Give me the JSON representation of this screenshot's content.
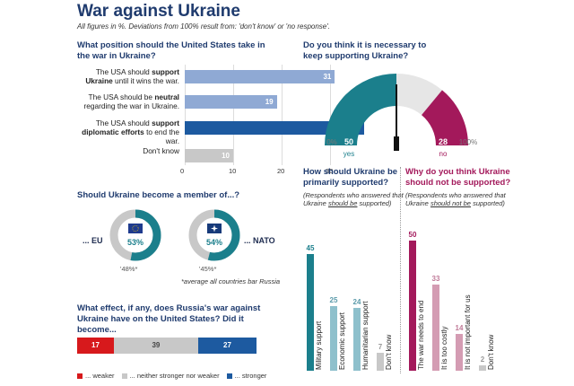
{
  "title": "War against Ukraine",
  "subtitle": "All figures in %. Deviations from 100% result from: 'don't know' or 'no response'.",
  "colors": {
    "lightblue": "#8fa9d4",
    "darkblue": "#1d5aa0",
    "gray": "#c8c8c8",
    "teal": "#1b7f8c",
    "maroon": "#a3195b",
    "pink": "#d49cb3",
    "lightteal": "#8ec0cc",
    "red": "#d7191c"
  },
  "q1": {
    "question": "What position should the United States take in the war in Ukraine?",
    "rows": [
      {
        "text_pre": "The USA should ",
        "text_bold": "support Ukraine",
        "text_post": " until it wins the war.",
        "value": 31
      },
      {
        "text_pre": "The USA should be ",
        "text_bold": "neutral",
        "text_post": " regarding the war in Ukraine.",
        "value": 19
      },
      {
        "text_pre": "The USA should ",
        "text_bold": "support diplomatic efforts",
        "text_post": " to end the war.",
        "value": 37
      },
      {
        "text_pre": "Don't know",
        "text_bold": "",
        "text_post": "",
        "value": 10
      }
    ],
    "ticks": [
      "0",
      "10",
      "20",
      "30"
    ]
  },
  "q2": {
    "question": "Should Ukraine become a member of...?",
    "eu": {
      "label": "... EU",
      "value": "53%",
      "avg": "48%*",
      "pct": 53
    },
    "nato": {
      "label": "... NATO",
      "value": "54%",
      "avg": "45%*",
      "pct": 54
    },
    "note": "*average all countries bar Russia"
  },
  "q3": {
    "question": "What effect, if any, does Russia's war against Ukraine have on the United States? Did it become...",
    "values": [
      17,
      39,
      27
    ],
    "legend": [
      "... weaker",
      "... neither stronger nor weaker",
      "... stronger"
    ]
  },
  "gauge": {
    "question": "Do you think it is necessary to keep supporting Ukraine?",
    "yes": 50,
    "no": 28,
    "yes_label": "yes",
    "no_label": "no",
    "left_tick": "0%",
    "right_tick": "100%"
  },
  "chart_data": [
    {
      "type": "bar",
      "title": "What position should the United States take in the war in Ukraine?",
      "categories": [
        "The USA should support Ukraine until it wins the war.",
        "The USA should be neutral regarding the war in Ukraine.",
        "The USA should support diplomatic efforts to end the war.",
        "Don't know"
      ],
      "values": [
        31,
        19,
        37,
        10
      ],
      "xlim": [
        0,
        37
      ]
    },
    {
      "type": "pie",
      "title": "Should Ukraine become a member of...?",
      "categories": [
        "EU",
        "NATO"
      ],
      "values": [
        53,
        54
      ],
      "averages": [
        48,
        45
      ]
    },
    {
      "type": "bar",
      "title": "What effect, if any, does Russia's war against Ukraine have on the United States? Did it become...",
      "categories": [
        "... weaker",
        "... neither stronger nor weaker",
        "... stronger"
      ],
      "values": [
        17,
        39,
        27
      ]
    },
    {
      "type": "pie",
      "title": "Do you think it is necessary to keep supporting Ukraine?",
      "categories": [
        "yes",
        "no"
      ],
      "values": [
        50,
        28
      ]
    },
    {
      "type": "bar",
      "title": "How should Ukraine be primarily supported?",
      "categories": [
        "Military support",
        "Economic support",
        "Humanitarian support",
        "Don't know"
      ],
      "values": [
        45,
        25,
        24,
        7
      ]
    },
    {
      "type": "bar",
      "title": "Why do you think Ukraine should not be supported?",
      "categories": [
        "The war needs to end",
        "It is too costly",
        "It is not important for us",
        "Don't know"
      ],
      "values": [
        50,
        33,
        14,
        2
      ]
    }
  ],
  "q4": {
    "question": "How should Ukraine be primarily supported?",
    "note_pre": "(Respondents who answered that Ukraine ",
    "note_u": "should be",
    "note_post": " supported)",
    "values": [
      45,
      25,
      24,
      7
    ],
    "labels": [
      "Military support",
      "Economic support",
      "Humanitarian support",
      "Don't know"
    ]
  },
  "q5": {
    "question": "Why do you think Ukraine should not be supported?",
    "note_pre": "(Respondents who answered that Ukraine ",
    "note_u": "should not be",
    "note_post": " supported)",
    "values": [
      50,
      33,
      14,
      2
    ],
    "labels": [
      "The war needs to end",
      "It is too costly",
      "It is not important for us",
      "Don't know"
    ]
  }
}
